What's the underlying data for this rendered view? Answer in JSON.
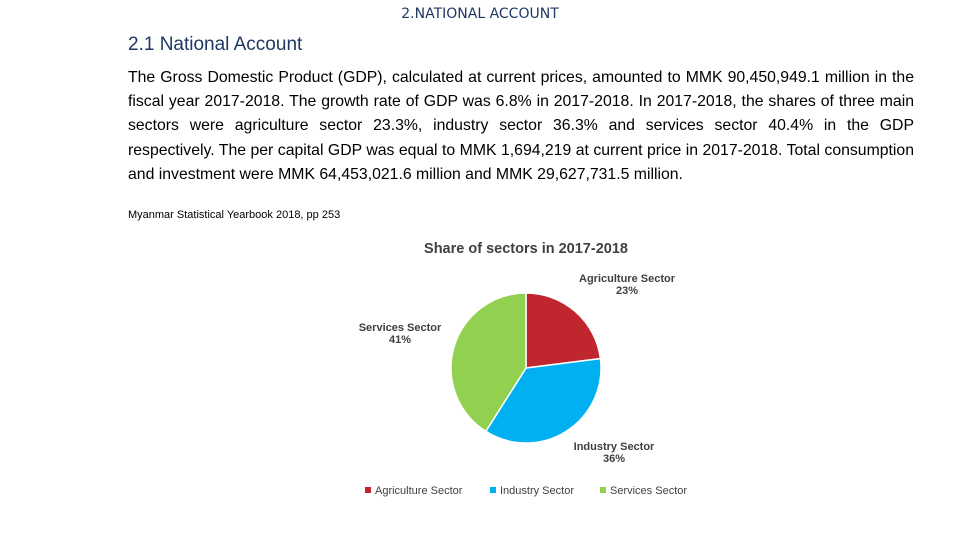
{
  "header": {
    "title": "2.NATIONAL ACCOUNT"
  },
  "section": {
    "heading": "2.1 National Account",
    "paragraph": "The Gross Domestic Product (GDP), calculated at current prices, amounted to MMK 90,450,949.1 million in the fiscal year 2017-2018. The growth rate of GDP was 6.8% in 2017-2018. In 2017-2018, the shares of three main sectors were agriculture sector 23.3%, industry sector 36.3% and services sector 40.4% in the GDP respectively. The per capital GDP was equal to MMK 1,694,219 at current price in 2017-2018. Total consumption and investment were MMK 64,453,021.6 million and MMK 29,627,731.5 million.",
    "source": "Myanmar Statistical Yearbook 2018, pp 253"
  },
  "chart_data": {
    "type": "pie",
    "title": "Share of sectors in 2017-2018",
    "slices": [
      {
        "name": "Agriculture Sector",
        "value": 23,
        "label": "23%",
        "color": "#c0262d"
      },
      {
        "name": "Industry Sector",
        "value": 36,
        "label": "36%",
        "color": "#00b0f0"
      },
      {
        "name": "Services Sector",
        "value": 41,
        "label": "41%",
        "color": "#92d050"
      }
    ],
    "legend_position": "bottom"
  }
}
